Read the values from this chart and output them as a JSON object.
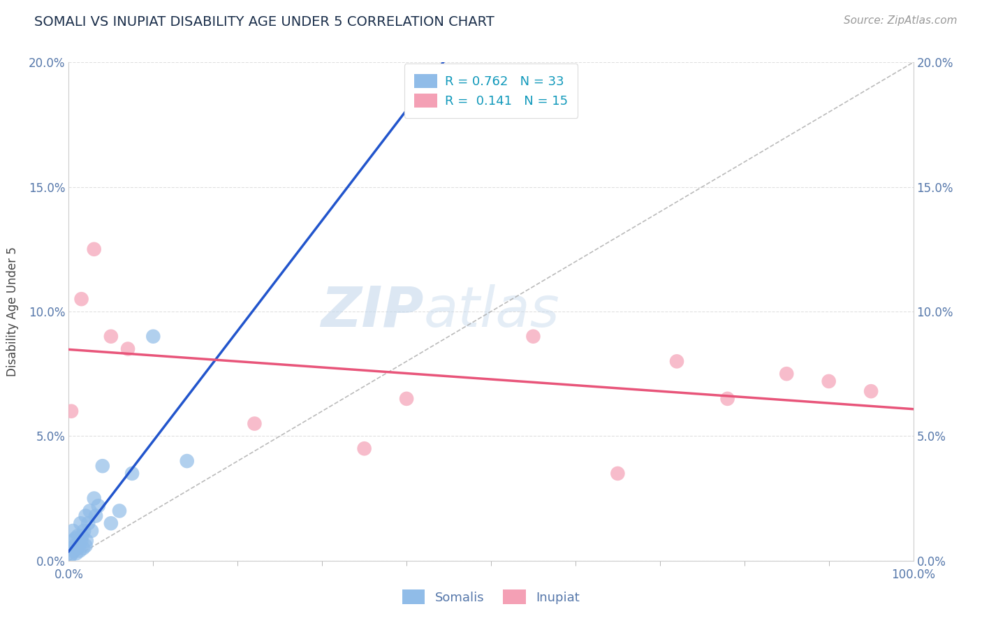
{
  "title": "SOMALI VS INUPIAT DISABILITY AGE UNDER 5 CORRELATION CHART",
  "source_text": "Source: ZipAtlas.com",
  "ylabel": "Disability Age Under 5",
  "xlim": [
    0,
    100
  ],
  "ylim": [
    0,
    20
  ],
  "ytick_values": [
    0,
    5,
    10,
    15,
    20
  ],
  "ytick_labels": [
    "0.0%",
    "5.0%",
    "10.0%",
    "15.0%",
    "20.0%"
  ],
  "somalis_color": "#90bce8",
  "inupiat_color": "#f4a0b5",
  "somalis_line_color": "#2255cc",
  "inupiat_line_color": "#e8557a",
  "ref_line_color": "#aaaaaa",
  "watermark_color": "#c5d8ec",
  "legend_r_somalis": "R = 0.762",
  "legend_n_somalis": "N = 33",
  "legend_r_inupiat": "R =  0.141",
  "legend_n_inupiat": "N = 15",
  "somalis_x": [
    0.2,
    0.3,
    0.4,
    0.5,
    0.5,
    0.6,
    0.7,
    0.8,
    0.9,
    1.0,
    1.1,
    1.2,
    1.3,
    1.4,
    1.5,
    1.6,
    1.7,
    1.8,
    2.0,
    2.0,
    2.1,
    2.3,
    2.5,
    2.7,
    3.0,
    3.2,
    3.5,
    4.0,
    5.0,
    6.0,
    7.5,
    10.0,
    14.0
  ],
  "somalis_y": [
    0.2,
    0.5,
    0.3,
    0.8,
    1.2,
    0.4,
    0.6,
    0.9,
    0.3,
    0.5,
    1.0,
    0.7,
    0.4,
    1.5,
    0.8,
    1.0,
    0.5,
    1.2,
    0.6,
    1.8,
    0.8,
    1.5,
    2.0,
    1.2,
    2.5,
    1.8,
    2.2,
    3.8,
    1.5,
    2.0,
    3.5,
    9.0,
    4.0
  ],
  "inupiat_x": [
    0.3,
    1.5,
    3.0,
    5.0,
    7.0,
    22.0,
    35.0,
    40.0,
    55.0,
    65.0,
    72.0,
    78.0,
    85.0,
    90.0,
    95.0
  ],
  "inupiat_y": [
    6.0,
    10.5,
    12.5,
    9.0,
    8.5,
    5.5,
    4.5,
    6.5,
    9.0,
    3.5,
    8.0,
    6.5,
    7.5,
    7.2,
    6.8
  ],
  "background_color": "#ffffff",
  "plot_bg_color": "#ffffff",
  "grid_color": "#e0e0e0",
  "title_color": "#1a2e4a",
  "axis_label_color": "#444444",
  "tick_color": "#5577aa"
}
